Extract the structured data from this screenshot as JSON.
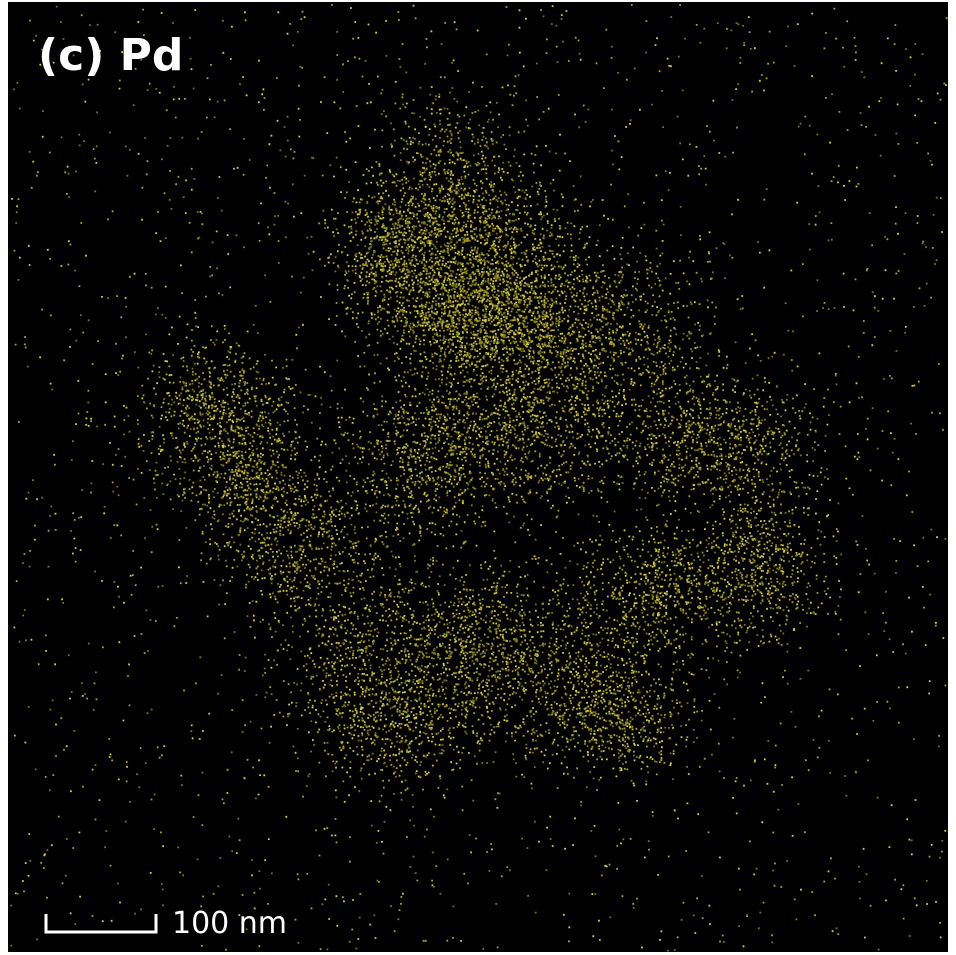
{
  "panel_label": "(c) Pd",
  "scale_bar": {
    "label": "100 nm"
  }
}
